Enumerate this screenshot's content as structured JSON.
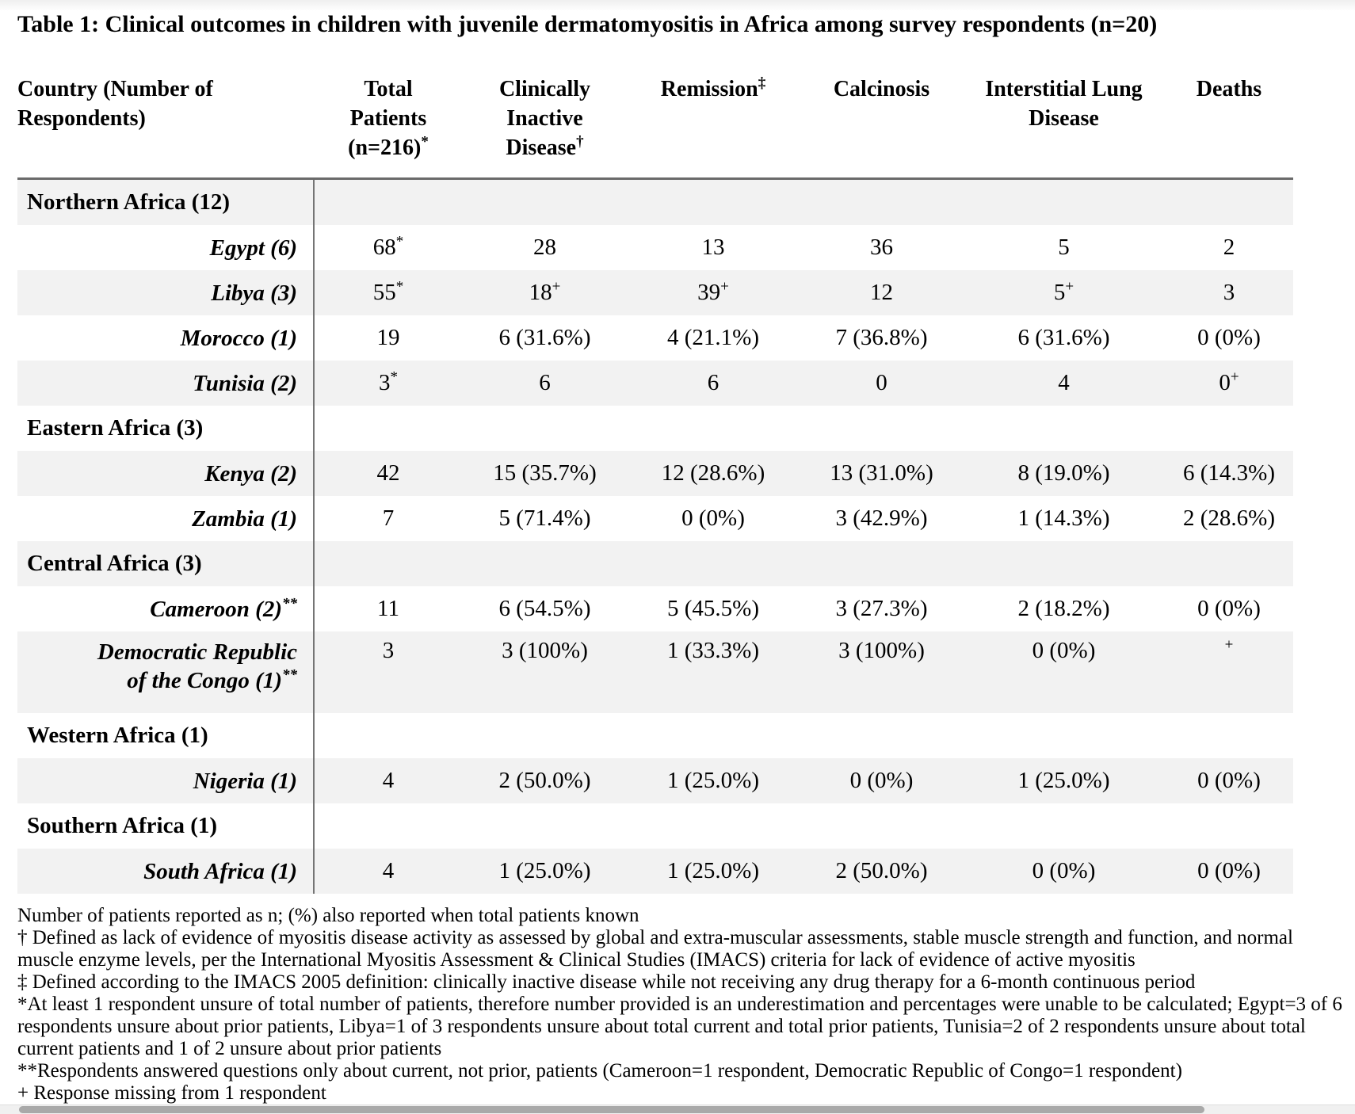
{
  "title": "Table 1: Clinical outcomes in children with juvenile dermatomyositis in Africa among survey respondents (n=20)",
  "colors": {
    "row_shade": "#f2f2f2",
    "table_border": "#6a6a6a",
    "scrollbar_thumb": "#a9a9a9",
    "scrollbar_track": "#f0f0f0"
  },
  "table": {
    "header": {
      "country": {
        "lines": [
          "Country (Number of",
          "Respondents)"
        ]
      },
      "cols": [
        {
          "lines": [
            {
              "t": "Total"
            },
            {
              "t": "Patients"
            },
            {
              "t": "(n=216)",
              "s": "*"
            }
          ]
        },
        {
          "lines": [
            {
              "t": "Clinically"
            },
            {
              "t": "Inactive"
            },
            {
              "t": "Disease",
              "s": "†"
            }
          ]
        },
        {
          "lines": [
            {
              "t": "Remission",
              "s": "‡"
            }
          ]
        },
        {
          "lines": [
            {
              "t": "Calcinosis"
            }
          ]
        },
        {
          "lines": [
            {
              "t": "Interstitial Lung"
            },
            {
              "t": "Disease"
            }
          ]
        },
        {
          "lines": [
            {
              "t": "Deaths"
            }
          ]
        }
      ]
    },
    "rows": [
      {
        "type": "region",
        "label": "Northern Africa (12)"
      },
      {
        "type": "country",
        "label": "Egypt (6)",
        "cells": [
          {
            "v": "68",
            "s": "*"
          },
          {
            "v": "28"
          },
          {
            "v": "13"
          },
          {
            "v": "36"
          },
          {
            "v": "5"
          },
          {
            "v": "2"
          }
        ]
      },
      {
        "type": "country",
        "label": "Libya (3)",
        "cells": [
          {
            "v": "55",
            "s": "*"
          },
          {
            "v": "18",
            "s": "+"
          },
          {
            "v": "39",
            "s": "+"
          },
          {
            "v": "12"
          },
          {
            "v": "5",
            "s": "+"
          },
          {
            "v": "3"
          }
        ]
      },
      {
        "type": "country",
        "label": "Morocco (1)",
        "cells": [
          {
            "v": "19"
          },
          {
            "v": "6 (31.6%)"
          },
          {
            "v": "4 (21.1%)"
          },
          {
            "v": "7 (36.8%)"
          },
          {
            "v": "6 (31.6%)"
          },
          {
            "v": "0 (0%)"
          }
        ]
      },
      {
        "type": "country",
        "label": "Tunisia (2)",
        "cells": [
          {
            "v": "3",
            "s": "*"
          },
          {
            "v": "6"
          },
          {
            "v": "6"
          },
          {
            "v": "0"
          },
          {
            "v": "4"
          },
          {
            "v": "0",
            "s": "+"
          }
        ]
      },
      {
        "type": "region",
        "label": "Eastern Africa (3)"
      },
      {
        "type": "country",
        "label": "Kenya (2)",
        "cells": [
          {
            "v": "42"
          },
          {
            "v": "15 (35.7%)"
          },
          {
            "v": "12 (28.6%)"
          },
          {
            "v": "13 (31.0%)"
          },
          {
            "v": "8 (19.0%)"
          },
          {
            "v": "6 (14.3%)"
          }
        ]
      },
      {
        "type": "country",
        "label": "Zambia (1)",
        "cells": [
          {
            "v": "7"
          },
          {
            "v": "5 (71.4%)"
          },
          {
            "v": "0 (0%)"
          },
          {
            "v": "3 (42.9%)"
          },
          {
            "v": "1 (14.3%)"
          },
          {
            "v": "2 (28.6%)"
          }
        ]
      },
      {
        "type": "region",
        "label": "Central Africa (3)"
      },
      {
        "type": "country",
        "label": "Cameroon (2)",
        "label_sup": "**",
        "cells": [
          {
            "v": "11"
          },
          {
            "v": "6 (54.5%)"
          },
          {
            "v": "5 (45.5%)"
          },
          {
            "v": "3 (27.3%)"
          },
          {
            "v": "2 (18.2%)"
          },
          {
            "v": "0 (0%)"
          }
        ]
      },
      {
        "type": "country",
        "label": "Democratic Republic of the Congo (1)",
        "label_sup": "**",
        "cells": [
          {
            "v": "3"
          },
          {
            "v": "3 (100%)"
          },
          {
            "v": "1 (33.3%)"
          },
          {
            "v": "3 (100%)"
          },
          {
            "v": "0 (0%)"
          },
          {
            "v": "",
            "s": "+"
          }
        ]
      },
      {
        "type": "region",
        "label": "Western Africa (1)"
      },
      {
        "type": "country",
        "label": "Nigeria (1)",
        "cells": [
          {
            "v": "4"
          },
          {
            "v": "2 (50.0%)"
          },
          {
            "v": "1 (25.0%)"
          },
          {
            "v": "0 (0%)"
          },
          {
            "v": "1 (25.0%)"
          },
          {
            "v": "0 (0%)"
          }
        ]
      },
      {
        "type": "region",
        "label": "Southern Africa (1)"
      },
      {
        "type": "country",
        "label": "South Africa (1)",
        "cells": [
          {
            "v": "4"
          },
          {
            "v": "1 (25.0%)"
          },
          {
            "v": "1 (25.0%)"
          },
          {
            "v": "2 (50.0%)"
          },
          {
            "v": "0 (0%)"
          },
          {
            "v": "0 (0%)"
          }
        ]
      }
    ]
  },
  "footnotes": [
    "Number of patients reported as n; (%) also reported when total patients known",
    "† Defined as lack of evidence of myositis disease activity as assessed by global and extra-muscular assessments, stable muscle strength and function, and normal muscle enzyme levels, per the International Myositis Assessment & Clinical Studies (IMACS) criteria for lack of evidence of active myositis",
    "‡ Defined according to the IMACS 2005 definition: clinically inactive disease while not receiving any drug therapy for a 6-month continuous period",
    "*At least 1 respondent unsure of total number of patients, therefore number provided is an underestimation and percentages were unable to be calculated; Egypt=3 of 6 respondents unsure about prior patients, Libya=1 of 3 respondents unsure about total current and total prior patients, Tunisia=2 of 2 respondents unsure about total current patients and 1 of 2 unsure about prior patients",
    "**Respondents answered questions only about current, not prior, patients (Cameroon=1 respondent, Democratic Republic of Congo=1 respondent)",
    "+ Response missing from 1 respondent"
  ]
}
